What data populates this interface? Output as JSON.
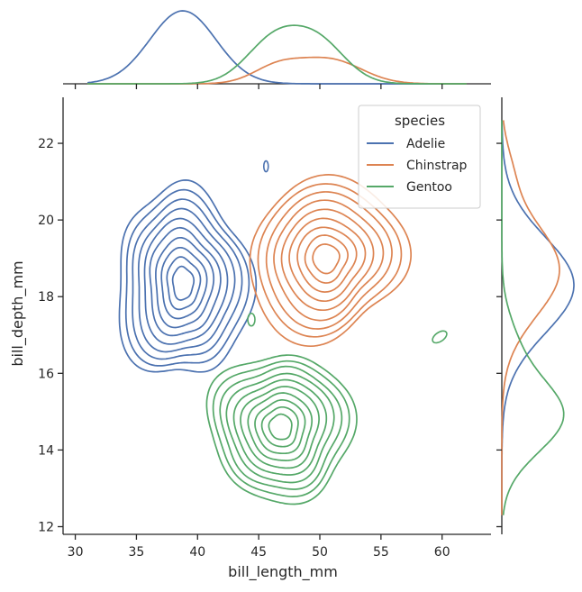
{
  "chart_data": {
    "type": "kde-joint",
    "xlabel": "bill_length_mm",
    "ylabel": "bill_depth_mm",
    "xlim": [
      29,
      64
    ],
    "ylim": [
      11.8,
      23.2
    ],
    "xticks": [
      30,
      35,
      40,
      45,
      50,
      55,
      60
    ],
    "yticks": [
      12,
      14,
      16,
      18,
      20,
      22
    ],
    "legend": {
      "title": "species",
      "placement": "upper-right"
    },
    "series": [
      {
        "name": "Adelie",
        "color": "#4c72b0",
        "center": [
          38.8,
          18.35
        ],
        "contour_levels": 10,
        "outer_extent": {
          "x": [
            31.7,
            45.3
          ],
          "y": [
            15.2,
            21.8
          ]
        },
        "marginal_x_peak": 38.8,
        "marginal_y_peak": 18.3
      },
      {
        "name": "Chinstrap",
        "color": "#dd8452",
        "center": [
          50.5,
          19.0
        ],
        "contour_levels": 9,
        "outer_extent": {
          "x": [
            42.5,
            59.0
          ],
          "y": [
            16.0,
            21.3
          ]
        },
        "marginal_x_peak": 50.8,
        "marginal_y_peak": 18.5
      },
      {
        "name": "Gentoo",
        "color": "#55a868",
        "center": [
          46.8,
          14.6
        ],
        "contour_levels": 10,
        "outer_extent": {
          "x": [
            40.5,
            55.0
          ],
          "y": [
            12.6,
            17.8
          ]
        },
        "marginal_x_peak": 46.5,
        "marginal_y_peak": 14.8
      }
    ]
  }
}
